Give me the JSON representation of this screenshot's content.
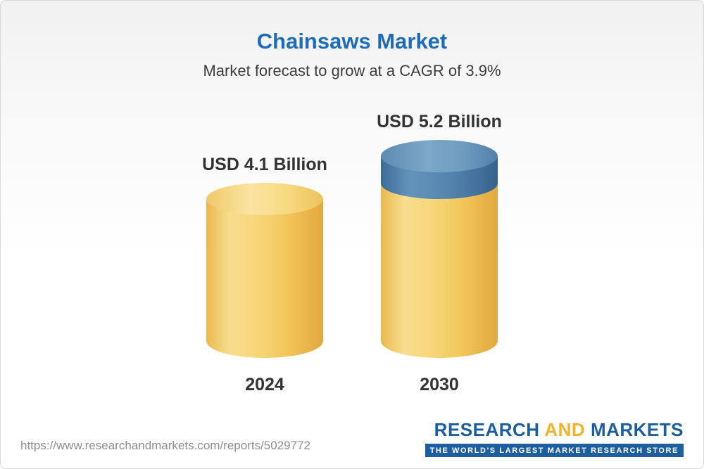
{
  "chart_data": {
    "type": "bar",
    "variant": "3d-cylinder",
    "title": "Chainsaws Market",
    "subtitle": "Market forecast to grow at a CAGR of 3.9%",
    "categories": [
      "2024",
      "2030"
    ],
    "values": [
      4.1,
      5.2
    ],
    "unit": "USD Billion",
    "bar_labels": [
      "USD 4.1 Billion",
      "USD 5.2 Billion"
    ],
    "cagr_percent": 3.9,
    "ylim": [
      0,
      5.2
    ],
    "legend": "none",
    "grid": "off",
    "colors": {
      "base_segment": "#F2C75C",
      "growth_segment": "#4878A8",
      "title": "#1E6CB5",
      "label_text": "#333333"
    }
  },
  "footer": {
    "url": "https://www.researchandmarkets.com/reports/5029772",
    "logo": {
      "word1": "RESEARCH",
      "word2": "AND",
      "word3": "MARKETS",
      "tagline": "THE WORLD'S LARGEST MARKET RESEARCH STORE"
    }
  }
}
